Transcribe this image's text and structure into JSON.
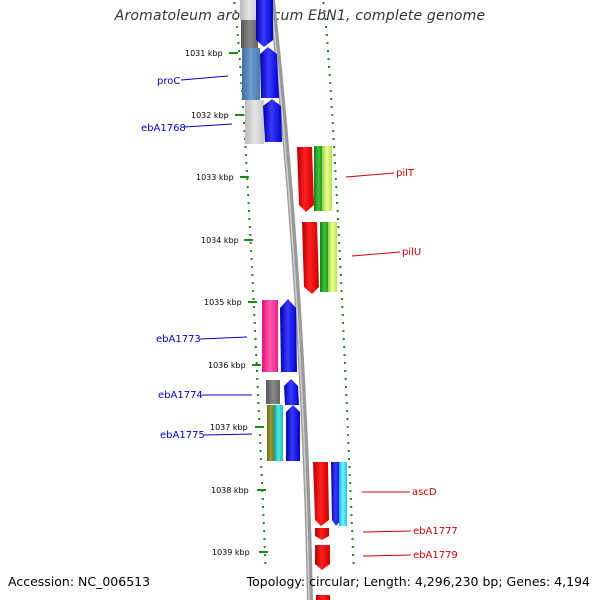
{
  "title": "Aromatoleum aromaticum EbN1, complete genome",
  "accession": "Accession: NC_006513",
  "summary": "Topology: circular; Length: 4,296,230 bp; Genes: 4,194",
  "colors": {
    "backbone": "#888888",
    "tick": "#1a8a1a",
    "left_label": "#0000cc",
    "right_label": "#cc0000"
  },
  "ticks": [
    "1031 kbp",
    "1032 kbp",
    "1033 kbp",
    "1034 kbp",
    "1035 kbp",
    "1036 kbp",
    "1037 kbp",
    "1038 kbp",
    "1039 kbp"
  ],
  "left_labels": [
    "proC",
    "ebA1768",
    "ebA1773",
    "ebA1774",
    "ebA1775"
  ],
  "right_labels": [
    "pilT",
    "pilU",
    "ascD",
    "ebA1777",
    "ebA1779"
  ]
}
